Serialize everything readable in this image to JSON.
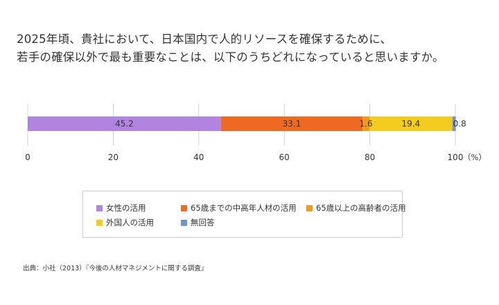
{
  "title_lines": [
    "2025年頃、貴社において、日本国内で人的リソースを確保するために、",
    "若手の確保以外で最も重要なことは、以下のうちどれになっていると思いますか。"
  ],
  "source": "出典：小社（2013）『今後の人材マネジメントに関する調査』",
  "chart_data": {
    "type": "bar",
    "orientation": "horizontal",
    "stacked": true,
    "categories": [
      ""
    ],
    "series": [
      {
        "name": "女性の活用",
        "values": [
          45.2
        ],
        "color": "#b184e0",
        "label": "45.2"
      },
      {
        "name": "65歳までの中高年人材の活用",
        "values": [
          33.1
        ],
        "color": "#ee6922",
        "label": "33.1"
      },
      {
        "name": "65歳以上の高齢者の活用",
        "values": [
          1.6
        ],
        "color": "#f29a18",
        "label": "1.6"
      },
      {
        "name": "外国人の活用",
        "values": [
          19.4
        ],
        "color": "#f2cc1f",
        "label": "19.4"
      },
      {
        "name": "無回答",
        "values": [
          0.8
        ],
        "color": "#6f97c8",
        "label": "0.8"
      }
    ],
    "xlim": [
      0,
      100
    ],
    "xticks": [
      "0",
      "20",
      "40",
      "60",
      "80",
      "100"
    ],
    "xunit": "（%）",
    "grid": true,
    "legend_position": "bottom"
  }
}
